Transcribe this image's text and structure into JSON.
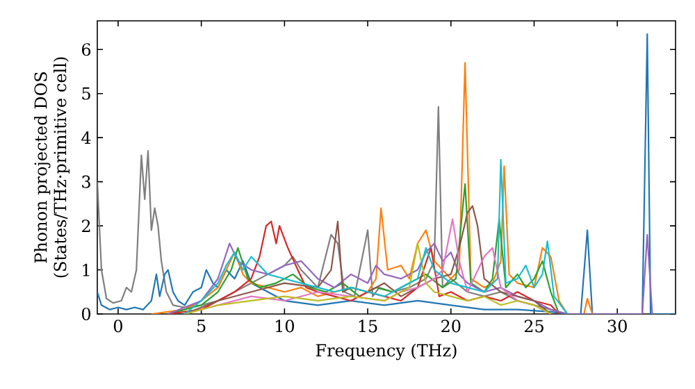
{
  "chart_data": {
    "type": "line",
    "xlabel": "Frequency (THz)",
    "ylabel": "Phonon projected DOS (States/THz·primitive cell)",
    "xlim": [
      -1.25,
      33.5
    ],
    "ylim": [
      0,
      6.65
    ],
    "xticks": [
      0,
      5,
      10,
      15,
      20,
      25,
      30
    ],
    "yticks": [
      0,
      1,
      2,
      3,
      4,
      5,
      6
    ],
    "marker": "none",
    "line_style": "solid",
    "series": [
      {
        "color": "#7f7f7f",
        "x": [
          -1.25,
          -1.0,
          -0.7,
          -0.3,
          0.2,
          0.5,
          0.8,
          1.1,
          1.4,
          1.6,
          1.8,
          2.0,
          2.2,
          2.4,
          2.6,
          2.9,
          3.3,
          4.0,
          5.0,
          6.0,
          7.0,
          8.0,
          9.0,
          10.0,
          10.5,
          11.0,
          12.0,
          12.8,
          13.2,
          13.6,
          14.2,
          15.0,
          15.3,
          15.7,
          16.5,
          17.5,
          18.5,
          19.0,
          19.25,
          19.5,
          20.0,
          21.0,
          22.0,
          23.0,
          24.0,
          25.0,
          26.0,
          27.0
        ],
        "values": [
          3.0,
          1.0,
          0.35,
          0.25,
          0.3,
          0.6,
          0.5,
          1.0,
          3.6,
          2.6,
          3.7,
          1.9,
          2.4,
          2.0,
          1.2,
          0.5,
          0.2,
          0.15,
          0.2,
          0.3,
          0.5,
          0.7,
          0.9,
          1.1,
          1.3,
          1.0,
          0.6,
          1.8,
          1.6,
          0.5,
          0.4,
          1.9,
          0.4,
          0.6,
          0.5,
          0.6,
          0.8,
          1.2,
          4.7,
          0.6,
          0.8,
          0.5,
          0.4,
          0.5,
          0.3,
          0.2,
          0.1,
          0.0
        ]
      },
      {
        "color": "#1f77b4",
        "x": [
          -1.25,
          -1,
          -0.5,
          0,
          0.5,
          1,
          1.5,
          2,
          2.3,
          2.5,
          2.8,
          3,
          3.3,
          3.6,
          4,
          4.5,
          5,
          5.3,
          5.7,
          6,
          6.5,
          7,
          7.5,
          8,
          9,
          10,
          12,
          14,
          16,
          18,
          20,
          22,
          24,
          26,
          27,
          27.8,
          28.2,
          28.5,
          29,
          31.5,
          31.8,
          32,
          32.5,
          33.5
        ],
        "values": [
          0.5,
          0.2,
          0.1,
          0.15,
          0.1,
          0.15,
          0.1,
          0.3,
          0.9,
          0.4,
          0.9,
          1.0,
          0.5,
          0.3,
          0.2,
          0.5,
          0.6,
          1.0,
          0.7,
          0.6,
          1.0,
          0.8,
          1.2,
          0.7,
          0.5,
          0.3,
          0.2,
          0.3,
          0.2,
          0.3,
          0.2,
          0.1,
          0.1,
          0.05,
          0,
          0,
          1.9,
          0,
          0,
          0,
          6.35,
          0,
          0,
          0
        ]
      },
      {
        "color": "#ff7f0e",
        "x": [
          2,
          4,
          5,
          6,
          6.5,
          7,
          7.5,
          8,
          9,
          10,
          11,
          12,
          13,
          14,
          15,
          15.5,
          15.8,
          16.2,
          17,
          17.5,
          18,
          18.5,
          19,
          19.5,
          20,
          20.5,
          20.85,
          21.2,
          22,
          22.5,
          23.0,
          23.2,
          23.5,
          24,
          25,
          25.5,
          26,
          26.5,
          27,
          28,
          28.2,
          28.5
        ],
        "values": [
          0,
          0.1,
          0.3,
          0.6,
          1.0,
          1.4,
          0.9,
          0.7,
          0.6,
          0.5,
          0.6,
          0.4,
          0.5,
          0.6,
          0.5,
          0.8,
          2.4,
          1.0,
          1.1,
          0.8,
          1.6,
          1.9,
          1.2,
          1.0,
          0.8,
          1.0,
          5.7,
          0.8,
          0.6,
          0.7,
          1.2,
          3.35,
          0.9,
          0.7,
          0.6,
          1.5,
          1.3,
          0.3,
          0,
          0,
          0.35,
          0
        ]
      },
      {
        "color": "#2ca02c",
        "x": [
          3,
          5,
          6,
          6.8,
          7.2,
          7.8,
          8.5,
          9.5,
          10.5,
          11.5,
          12.5,
          13.5,
          14.5,
          15.5,
          16.5,
          17.5,
          18.5,
          19.5,
          20.3,
          20.85,
          21.2,
          22,
          22.5,
          22.9,
          23.3,
          24,
          24.5,
          25,
          25.5,
          26,
          26.5
        ],
        "values": [
          0,
          0.2,
          0.5,
          1.0,
          1.5,
          0.8,
          0.6,
          0.7,
          0.9,
          0.6,
          0.5,
          0.7,
          0.4,
          0.6,
          0.5,
          0.7,
          0.9,
          0.6,
          0.8,
          2.95,
          0.7,
          0.5,
          0.8,
          2.15,
          0.6,
          0.9,
          0.6,
          0.8,
          1.2,
          0.5,
          0
        ]
      },
      {
        "color": "#d62728",
        "x": [
          3,
          5,
          6,
          7,
          8,
          8.5,
          8.9,
          9.2,
          9.5,
          9.7,
          10.2,
          10.8,
          11.3,
          12,
          13,
          14,
          15,
          16,
          17,
          18,
          18.8,
          19.3,
          20,
          21,
          22,
          23,
          24,
          25,
          26,
          26.5
        ],
        "values": [
          0,
          0.1,
          0.3,
          0.5,
          0.8,
          1.3,
          2.0,
          2.1,
          1.6,
          2.0,
          1.5,
          1.0,
          0.6,
          0.5,
          0.4,
          0.3,
          0.5,
          0.4,
          0.3,
          0.6,
          1.5,
          0.4,
          0.5,
          0.3,
          0.4,
          0.3,
          0.5,
          0.3,
          0.2,
          0
        ]
      },
      {
        "color": "#9467bd",
        "x": [
          3,
          5,
          6,
          6.7,
          7.2,
          8,
          9,
          10,
          11,
          12,
          13,
          14,
          15,
          15.5,
          16,
          17,
          18,
          18.5,
          19,
          19.5,
          20,
          20.5,
          21,
          22,
          23,
          24,
          25,
          26,
          27,
          31.5,
          31.8,
          32.1
        ],
        "values": [
          0,
          0.3,
          0.8,
          1.6,
          1.2,
          1.0,
          0.9,
          1.1,
          1.2,
          0.8,
          0.6,
          0.9,
          0.7,
          1.1,
          0.9,
          0.8,
          1.0,
          1.4,
          1.6,
          1.2,
          1.4,
          0.9,
          0.7,
          0.5,
          0.6,
          0.4,
          0.3,
          0.1,
          0,
          0,
          1.8,
          0
        ]
      },
      {
        "color": "#8c564b",
        "x": [
          4,
          6,
          8,
          10,
          12,
          12.8,
          13.2,
          13.5,
          14,
          15,
          16,
          17,
          18,
          19,
          20,
          20.5,
          21,
          21.3,
          21.6,
          22,
          23,
          24,
          25,
          26
        ],
        "values": [
          0,
          0.3,
          0.5,
          0.7,
          0.6,
          1.0,
          2.1,
          0.5,
          0.6,
          0.5,
          0.7,
          0.4,
          0.6,
          0.8,
          0.9,
          1.5,
          2.3,
          2.45,
          2.0,
          0.8,
          0.5,
          0.4,
          0.3,
          0
        ]
      },
      {
        "color": "#e377c2",
        "x": [
          4,
          6,
          8,
          10,
          12,
          14,
          16,
          17,
          18,
          19,
          19.5,
          20.1,
          20.5,
          21,
          22,
          22.5,
          23,
          24,
          25,
          26
        ],
        "values": [
          0,
          0.2,
          0.4,
          0.3,
          0.5,
          0.4,
          0.3,
          0.5,
          0.6,
          0.8,
          1.0,
          2.15,
          1.2,
          0.5,
          1.3,
          1.5,
          0.6,
          0.3,
          0.2,
          0
        ]
      },
      {
        "color": "#bcbd22",
        "x": [
          4,
          6,
          8,
          10,
          12,
          14,
          16,
          17.5,
          18,
          18.5,
          19,
          20,
          21,
          22,
          23,
          24,
          25,
          26
        ],
        "values": [
          0,
          0.2,
          0.3,
          0.4,
          0.3,
          0.4,
          0.3,
          0.6,
          1.6,
          0.7,
          0.5,
          0.4,
          0.3,
          0.4,
          0.2,
          0.3,
          0.2,
          0
        ]
      },
      {
        "color": "#17becf",
        "x": [
          4,
          5,
          6,
          6.5,
          7,
          7.5,
          8,
          9,
          10,
          11,
          12,
          13,
          14,
          15,
          16,
          17,
          18,
          18.5,
          19,
          20,
          21,
          22,
          22.8,
          23.0,
          23.3,
          24,
          24.5,
          25,
          25.5,
          25.8,
          26.2,
          27
        ],
        "values": [
          0,
          0.3,
          0.7,
          1.1,
          1.4,
          1.0,
          1.3,
          0.9,
          0.8,
          0.7,
          0.6,
          0.5,
          0.6,
          0.5,
          0.4,
          0.6,
          0.8,
          1.5,
          1.0,
          0.7,
          0.6,
          0.5,
          0.8,
          3.5,
          0.7,
          0.8,
          1.1,
          0.6,
          0.9,
          1.65,
          0.4,
          0
        ]
      }
    ]
  }
}
